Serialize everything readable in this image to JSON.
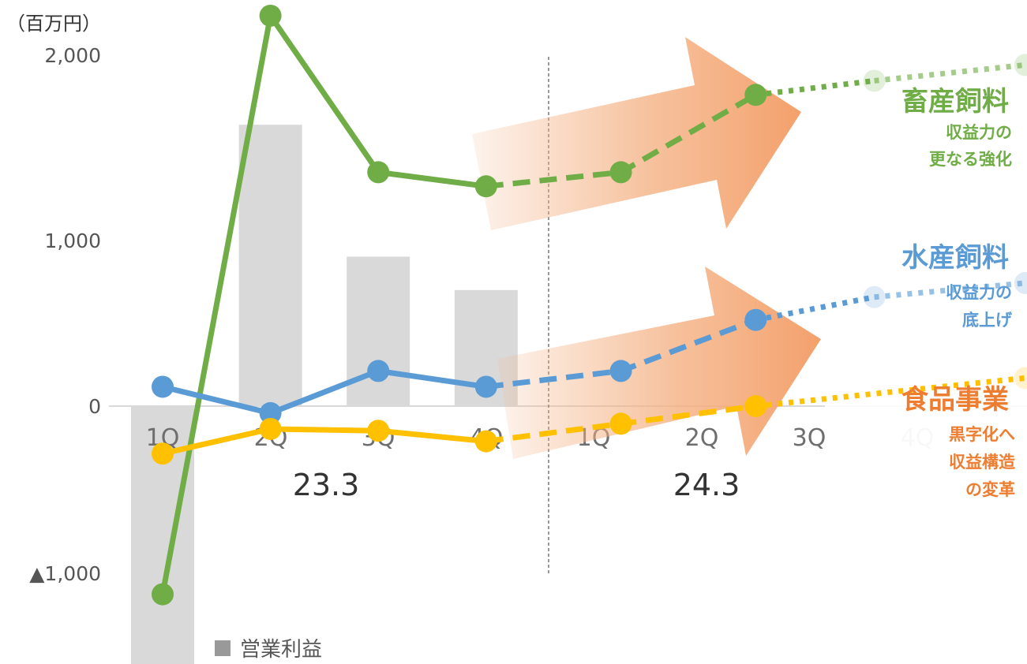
{
  "chart_data": {
    "type": "bar+line",
    "unit_label": "（百万円）",
    "y_tick_labels": [
      "2,000",
      "1,000",
      "0",
      "▲1,000"
    ],
    "y_ticks": [
      2000,
      1000,
      0,
      -1000
    ],
    "ylim": [
      -1500,
      2200
    ],
    "categories": [
      "1Q",
      "2Q",
      "3Q",
      "4Q",
      "1Q",
      "2Q",
      "3Q",
      "4Q"
    ],
    "periods": [
      "23.3",
      "24.3"
    ],
    "bars": {
      "name": "営業利益",
      "values": [
        -1500,
        1600,
        850,
        660,
        null,
        null,
        null,
        null
      ],
      "color": "#d9d9d9"
    },
    "series": [
      {
        "name": "畜産飼料",
        "color": "#70ad47",
        "actual": [
          [
            0,
            -1070
          ],
          [
            1,
            2220
          ],
          [
            2,
            1330
          ],
          [
            3,
            1250
          ]
        ],
        "forecast_dashed": [
          [
            3,
            1250
          ],
          [
            4.25,
            1330
          ],
          [
            5.5,
            1770
          ]
        ],
        "forecast_dotted": [
          [
            5.5,
            1770
          ],
          [
            6.6,
            1850
          ],
          [
            8.0,
            1940
          ]
        ]
      },
      {
        "name": "水産飼料",
        "color": "#5b9bd5",
        "actual": [
          [
            0,
            110
          ],
          [
            1,
            -40
          ],
          [
            2,
            200
          ],
          [
            3,
            110
          ]
        ],
        "forecast_dashed": [
          [
            3,
            110
          ],
          [
            4.25,
            200
          ],
          [
            5.5,
            490
          ]
        ],
        "forecast_dotted": [
          [
            5.5,
            490
          ],
          [
            6.6,
            620
          ],
          [
            8.0,
            700
          ]
        ]
      },
      {
        "name": "食品事業",
        "color": "#ffc000",
        "actual": [
          [
            0,
            -270
          ],
          [
            1,
            -130
          ],
          [
            2,
            -140
          ],
          [
            3,
            -200
          ]
        ],
        "forecast_dashed": [
          [
            3,
            -200
          ],
          [
            4.25,
            -100
          ],
          [
            5.5,
            0
          ]
        ],
        "forecast_dotted": [
          [
            5.5,
            0
          ],
          [
            8.0,
            160
          ]
        ]
      }
    ],
    "annotations": [
      {
        "title": "畜産飼料",
        "lines": [
          "収益力の",
          "更なる強化"
        ],
        "color": "#70ad47"
      },
      {
        "title": "水産飼料",
        "lines": [
          "収益力の",
          "底上げ"
        ],
        "color": "#5b9bd5"
      },
      {
        "title": "食品事業",
        "lines": [
          "黒字化へ",
          "収益構造",
          "の変革"
        ],
        "color": "#ed7d31"
      }
    ],
    "legend": [
      {
        "label": "営業利益",
        "color": "#999999"
      }
    ],
    "legend_position": "bottom"
  }
}
